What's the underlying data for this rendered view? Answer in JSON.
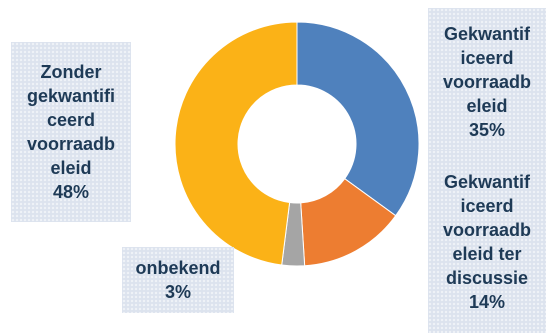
{
  "chart_data": {
    "type": "pie",
    "donut": true,
    "title": "",
    "slices": [
      {
        "label": "Gekwantificeerd voorraadbeleid",
        "value": 35,
        "value_label": "35%",
        "color": "#4f81bd"
      },
      {
        "label": "Gekwantificeerd voorraadbeleid ter discussie",
        "value": 14,
        "value_label": "14%",
        "color": "#ed7d31"
      },
      {
        "label": "onbekend",
        "value": 3,
        "value_label": "3%",
        "color": "#a5a5a5"
      },
      {
        "label": "Zonder gekwantificeerd voorraadbeleid",
        "value": 48,
        "value_label": "48%",
        "color": "#fbb217"
      }
    ],
    "legend": "none"
  },
  "labels": {
    "zonder": "Zonder\ngekwantifi\nceerd\nvoorraadb\neleid\n48%",
    "gekwantificeerd": "Gekwantif\niceerd\nvoorraadb\neleid\n35%",
    "ter_discussie": "Gekwantif\niceerd\nvoorraadb\neleid ter\ndiscussie\n14%",
    "onbekend": "onbekend\n3%"
  }
}
